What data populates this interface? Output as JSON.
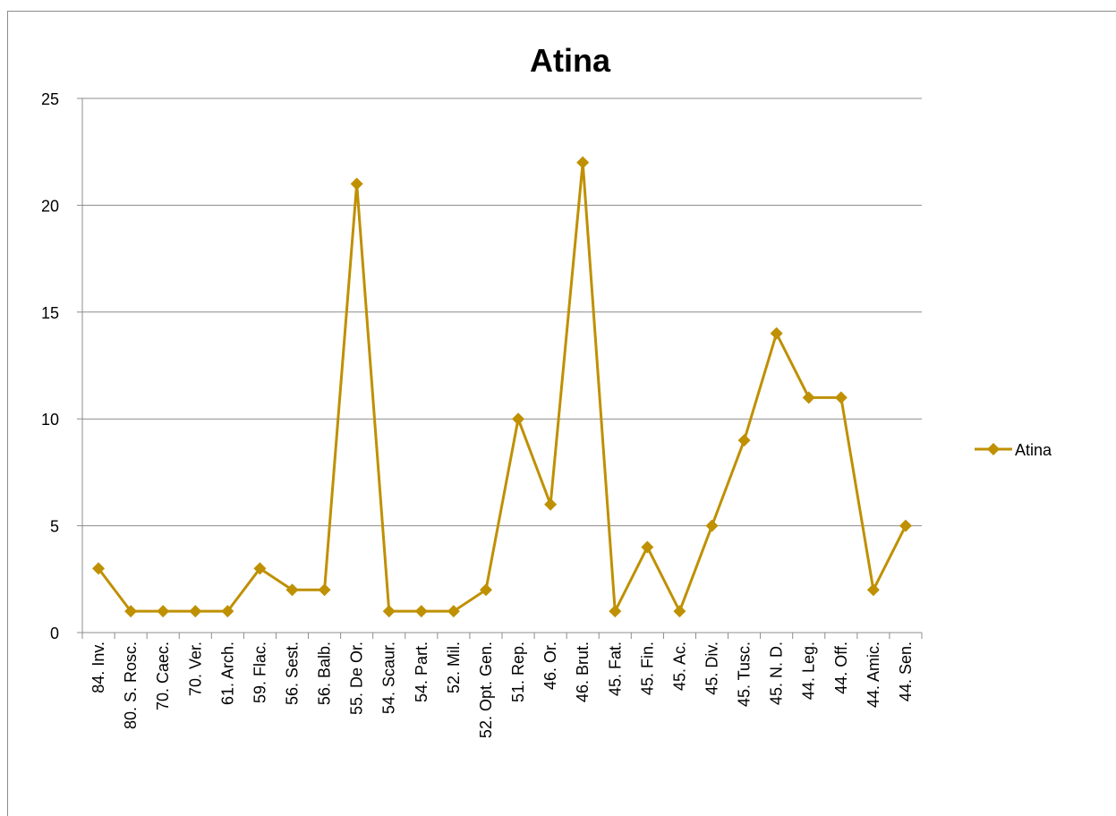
{
  "chart_data": {
    "type": "line",
    "title": "Atina",
    "xlabel": "",
    "ylabel": "",
    "ylim": [
      0,
      25
    ],
    "yticks": [
      0,
      5,
      10,
      15,
      20,
      25
    ],
    "grid": true,
    "legend_position": "right",
    "categories": [
      "84. Inv.",
      "80. S. Rosc.",
      "70. Caec.",
      "70. Ver.",
      "61. Arch.",
      "59. Flac.",
      "56. Sest.",
      "56. Balb.",
      "55. De Or.",
      "54. Scaur.",
      "54. Part.",
      "52. Mil.",
      "52. Opt. Gen.",
      "51. Rep.",
      "46. Or.",
      "46. Brut.",
      "45. Fat.",
      "45. Fin.",
      "45. Ac.",
      "45. Div.",
      "45. Tusc.",
      "45. N. D.",
      "44. Leg.",
      "44. Off.",
      "44. Amic.",
      "44. Sen."
    ],
    "series": [
      {
        "name": "Atina",
        "color": "#bf9000",
        "marker": "diamond",
        "values": [
          3,
          1,
          1,
          1,
          1,
          3,
          2,
          2,
          21,
          1,
          1,
          1,
          2,
          10,
          6,
          22,
          1,
          4,
          1,
          5,
          9,
          14,
          11,
          11,
          2,
          5
        ]
      }
    ]
  }
}
